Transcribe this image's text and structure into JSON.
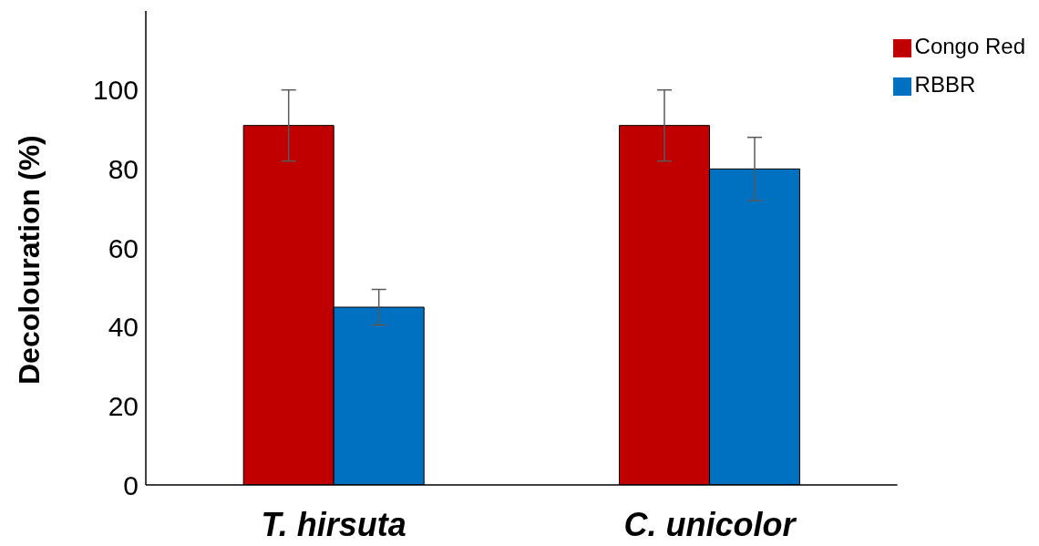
{
  "chart_data": {
    "type": "bar",
    "ylabel": "Decolouration (%)",
    "categories": [
      "T. hirsuta",
      "C. unicolor"
    ],
    "series": [
      {
        "name": "Congo Red",
        "color": "#c00000",
        "values": [
          91,
          91
        ],
        "errors": [
          9,
          9
        ]
      },
      {
        "name": "RBBR",
        "color": "#0070c0",
        "values": [
          45,
          80
        ],
        "errors": [
          4.5,
          8
        ]
      }
    ],
    "ylim": [
      0,
      120
    ],
    "yticks": [
      0,
      20,
      40,
      60,
      80,
      100
    ],
    "legend": "top right"
  }
}
